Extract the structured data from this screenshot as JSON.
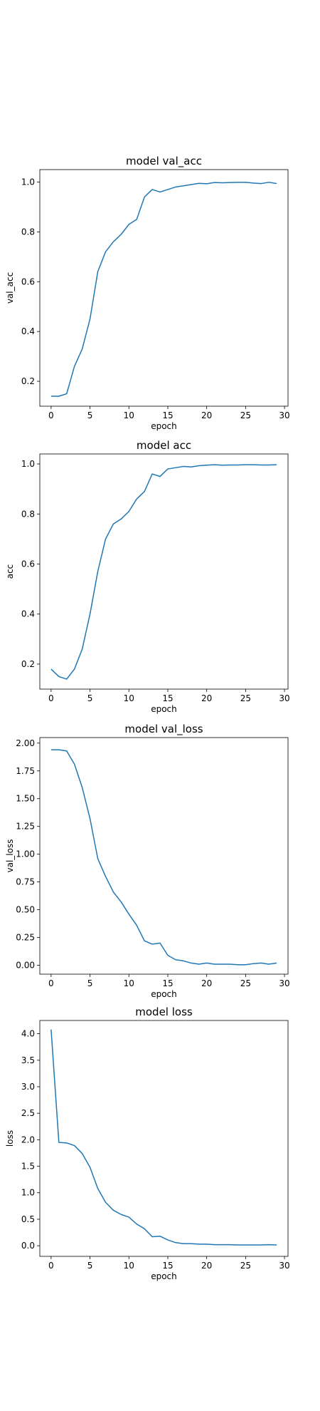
{
  "chart_data": [
    {
      "type": "line",
      "title": "model val_acc",
      "xlabel": "epoch",
      "ylabel": "val_acc",
      "xlim": [
        -1.45,
        30.45
      ],
      "ylim": [
        0.1,
        1.05
      ],
      "xticks": [
        0,
        5,
        10,
        15,
        20,
        25,
        30
      ],
      "yticks": [
        0.2,
        0.4,
        0.6,
        0.8,
        1.0
      ],
      "ytick_labels": [
        "0.2",
        "0.4",
        "0.6",
        "0.8",
        "1.0"
      ],
      "grid": false,
      "color": "#1f77b4",
      "series": [
        {
          "x": [
            0,
            1,
            2,
            3,
            4,
            5,
            6,
            7,
            8,
            9,
            10,
            11,
            12,
            13,
            14,
            15,
            16,
            17,
            18,
            19,
            20,
            21,
            22,
            23,
            24,
            25,
            26,
            27,
            28,
            29
          ],
          "values": [
            0.14,
            0.14,
            0.15,
            0.26,
            0.33,
            0.45,
            0.64,
            0.72,
            0.76,
            0.79,
            0.83,
            0.85,
            0.94,
            0.97,
            0.96,
            0.97,
            0.98,
            0.985,
            0.99,
            0.995,
            0.993,
            0.998,
            0.997,
            0.998,
            0.999,
            0.999,
            0.996,
            0.994,
            0.999,
            0.994
          ]
        }
      ]
    },
    {
      "type": "line",
      "title": "model acc",
      "xlabel": "epoch",
      "ylabel": "acc",
      "xlim": [
        -1.45,
        30.45
      ],
      "ylim": [
        0.1,
        1.04
      ],
      "xticks": [
        0,
        5,
        10,
        15,
        20,
        25,
        30
      ],
      "yticks": [
        0.2,
        0.4,
        0.6,
        0.8,
        1.0
      ],
      "ytick_labels": [
        "0.2",
        "0.4",
        "0.6",
        "0.8",
        "1.0"
      ],
      "grid": false,
      "color": "#1f77b4",
      "series": [
        {
          "x": [
            0,
            1,
            2,
            3,
            4,
            5,
            6,
            7,
            8,
            9,
            10,
            11,
            12,
            13,
            14,
            15,
            16,
            17,
            18,
            19,
            20,
            21,
            22,
            23,
            24,
            25,
            26,
            27,
            28,
            29
          ],
          "values": [
            0.18,
            0.15,
            0.14,
            0.18,
            0.26,
            0.4,
            0.57,
            0.7,
            0.76,
            0.78,
            0.81,
            0.86,
            0.89,
            0.96,
            0.95,
            0.98,
            0.985,
            0.99,
            0.988,
            0.993,
            0.995,
            0.997,
            0.995,
            0.996,
            0.996,
            0.997,
            0.997,
            0.996,
            0.996,
            0.997
          ]
        }
      ]
    },
    {
      "type": "line",
      "title": "model val_loss",
      "xlabel": "epoch",
      "ylabel": "val_loss",
      "xlim": [
        -1.45,
        30.45
      ],
      "ylim": [
        -0.08,
        2.05
      ],
      "xticks": [
        0,
        5,
        10,
        15,
        20,
        25,
        30
      ],
      "yticks": [
        0.0,
        0.25,
        0.5,
        0.75,
        1.0,
        1.25,
        1.5,
        1.75,
        2.0
      ],
      "ytick_labels": [
        "0.00",
        "0.25",
        "0.50",
        "0.75",
        "1.00",
        "1.25",
        "1.50",
        "1.75",
        "2.00"
      ],
      "grid": false,
      "color": "#1f77b4",
      "series": [
        {
          "x": [
            0,
            1,
            2,
            3,
            4,
            5,
            6,
            7,
            8,
            9,
            10,
            11,
            12,
            13,
            14,
            15,
            16,
            17,
            18,
            19,
            20,
            21,
            22,
            23,
            24,
            25,
            26,
            27,
            28,
            29
          ],
          "values": [
            1.94,
            1.94,
            1.93,
            1.81,
            1.6,
            1.32,
            0.96,
            0.8,
            0.66,
            0.57,
            0.46,
            0.36,
            0.22,
            0.19,
            0.2,
            0.09,
            0.05,
            0.04,
            0.02,
            0.01,
            0.02,
            0.01,
            0.01,
            0.01,
            0.005,
            0.005,
            0.015,
            0.02,
            0.01,
            0.02
          ]
        }
      ]
    },
    {
      "type": "line",
      "title": "model loss",
      "xlabel": "epoch",
      "ylabel": "loss",
      "xlim": [
        -1.45,
        30.45
      ],
      "ylim": [
        -0.2,
        4.25
      ],
      "xticks": [
        0,
        5,
        10,
        15,
        20,
        25,
        30
      ],
      "yticks": [
        0.0,
        0.5,
        1.0,
        1.5,
        2.0,
        2.5,
        3.0,
        3.5,
        4.0
      ],
      "ytick_labels": [
        "0.0",
        "0.5",
        "1.0",
        "1.5",
        "2.0",
        "2.5",
        "3.0",
        "3.5",
        "4.0"
      ],
      "grid": false,
      "color": "#1f77b4",
      "series": [
        {
          "x": [
            0,
            1,
            2,
            3,
            4,
            5,
            6,
            7,
            8,
            9,
            10,
            11,
            12,
            13,
            14,
            15,
            16,
            17,
            18,
            19,
            20,
            21,
            22,
            23,
            24,
            25,
            26,
            27,
            28,
            29
          ],
          "values": [
            4.08,
            1.95,
            1.94,
            1.89,
            1.74,
            1.48,
            1.08,
            0.82,
            0.67,
            0.59,
            0.54,
            0.41,
            0.32,
            0.17,
            0.18,
            0.11,
            0.06,
            0.04,
            0.04,
            0.03,
            0.03,
            0.02,
            0.02,
            0.02,
            0.015,
            0.015,
            0.015,
            0.015,
            0.02,
            0.015
          ]
        }
      ]
    }
  ]
}
